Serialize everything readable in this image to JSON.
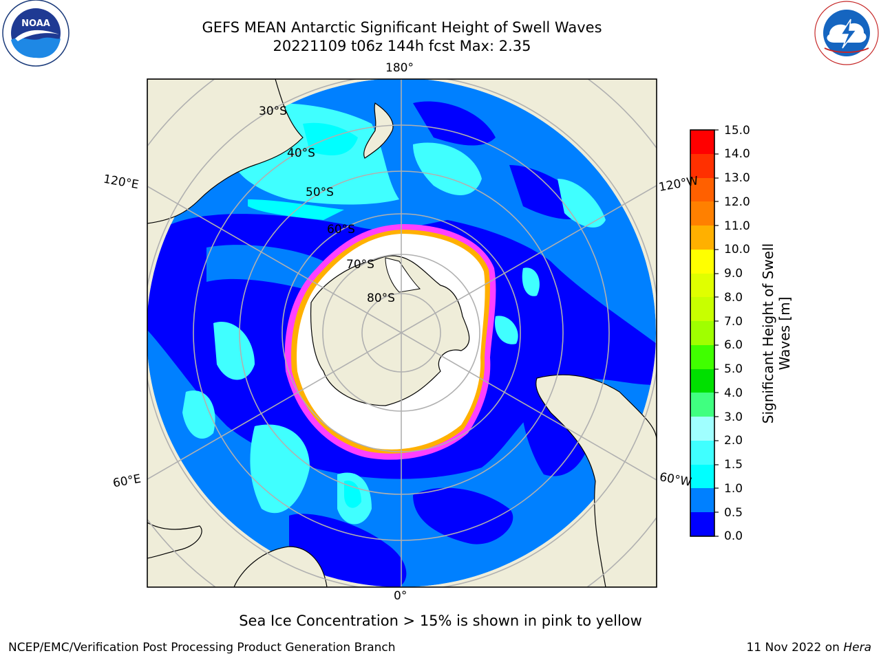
{
  "title": {
    "line1": "GEFS MEAN Antarctic Significant Height of Swell Waves",
    "line2": "20221109 t06z 144h fcst   Max: 2.35"
  },
  "logos": {
    "left": "NOAA",
    "left_ring": "NATIONAL OCEANIC AND ATMOSPHERIC ADMINISTRATION · U.S. DEPARTMENT OF COMMERCE",
    "right_ring": "NATIONAL WEATHER SERVICE"
  },
  "map": {
    "projection": "south-polar-stereographic",
    "longitude_labels": {
      "top": "180°",
      "bottom": "0°",
      "upper_left": "120°E",
      "upper_right": "120°W",
      "lower_left": "60°E",
      "lower_right": "60°W"
    },
    "latitude_labels": [
      "30°S",
      "40°S",
      "50°S",
      "60°S",
      "70°S",
      "80°S"
    ],
    "colors": {
      "land": "#efedd9",
      "ocean_low": "#0000ff",
      "ocean_mid": "#0080ff",
      "ocean_high": "#00ffff",
      "ocean_high2": "#40ffff",
      "ice": "#ffffff",
      "ice_edge": "#ff40ff",
      "ice_edge2": "#ffb000",
      "grid": "#b0b0b0"
    }
  },
  "colorbar": {
    "label": "Significant Height of Swell Waves [m]",
    "ticks": [
      "15.0",
      "14.0",
      "13.0",
      "12.0",
      "11.0",
      "10.0",
      "9.0",
      "8.0",
      "7.0",
      "6.0",
      "5.0",
      "4.0",
      "3.0",
      "2.0",
      "1.5",
      "1.0",
      "0.5",
      "0.0"
    ],
    "colors_bottom_to_top": [
      "#0000ff",
      "#0080ff",
      "#00ffff",
      "#40ffff",
      "#a0ffff",
      "#40ff80",
      "#00e000",
      "#40ff00",
      "#a0ff00",
      "#c8ff00",
      "#e0ff00",
      "#ffff00",
      "#ffe000",
      "#ffb000",
      "#ff8000",
      "#ff6000",
      "#ff3000",
      "#ff0000"
    ]
  },
  "caption": "Sea Ice Concentration > 15% is shown in pink to yellow",
  "footer": {
    "left": "NCEP/EMC/Verification Post Processing Product Generation Branch",
    "right_prefix": "11 Nov 2022 on ",
    "right_italic": "Hera"
  }
}
